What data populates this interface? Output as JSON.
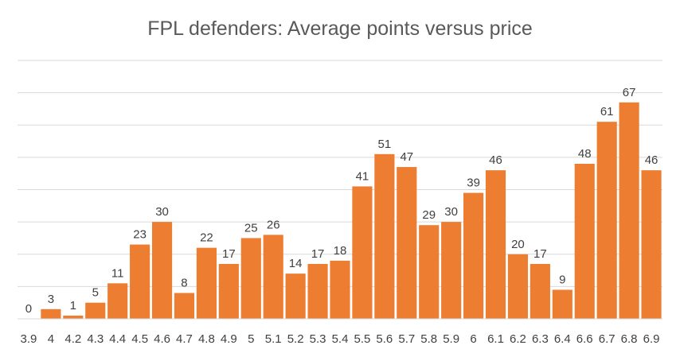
{
  "chart_data": {
    "type": "bar",
    "title": "FPL defenders: Average points versus price",
    "xlabel": "",
    "ylabel": "",
    "categories": [
      "3.9",
      "4",
      "4.2",
      "4.3",
      "4.4",
      "4.5",
      "4.6",
      "4.7",
      "4.8",
      "4.9",
      "5",
      "5.1",
      "5.2",
      "5.3",
      "5.4",
      "5.5",
      "5.6",
      "5.7",
      "5.8",
      "5.9",
      "6",
      "6.1",
      "6.2",
      "6.3",
      "6.4",
      "6.6",
      "6.7",
      "6.8",
      "6.9"
    ],
    "values": [
      0,
      3,
      1,
      5,
      11,
      23,
      30,
      8,
      22,
      17,
      25,
      26,
      14,
      17,
      18,
      41,
      51,
      47,
      29,
      30,
      39,
      46,
      20,
      17,
      9,
      48,
      61,
      67,
      46
    ],
    "ylim": [
      0,
      80
    ],
    "grid": true,
    "show_y_tick_labels": false,
    "bar_color": "#ed7d31",
    "data_labels": true
  }
}
